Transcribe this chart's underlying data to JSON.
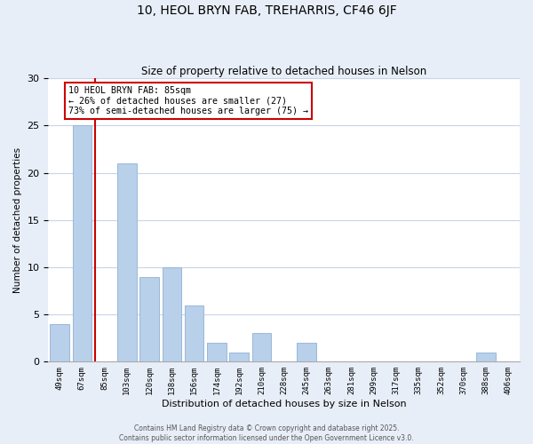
{
  "title": "10, HEOL BRYN FAB, TREHARRIS, CF46 6JF",
  "subtitle": "Size of property relative to detached houses in Nelson",
  "xlabel": "Distribution of detached houses by size in Nelson",
  "ylabel": "Number of detached properties",
  "bar_labels": [
    "49sqm",
    "67sqm",
    "85sqm",
    "103sqm",
    "120sqm",
    "138sqm",
    "156sqm",
    "174sqm",
    "192sqm",
    "210sqm",
    "228sqm",
    "245sqm",
    "263sqm",
    "281sqm",
    "299sqm",
    "317sqm",
    "335sqm",
    "352sqm",
    "370sqm",
    "388sqm",
    "406sqm"
  ],
  "bar_values": [
    4,
    25,
    0,
    21,
    9,
    10,
    6,
    2,
    1,
    3,
    0,
    2,
    0,
    0,
    0,
    0,
    0,
    0,
    0,
    1,
    0
  ],
  "bar_color": "#b8d0ea",
  "bar_edge_color": "#9ab8d8",
  "highlight_line_color": "#cc0000",
  "annotation_text": "10 HEOL BRYN FAB: 85sqm\n← 26% of detached houses are smaller (27)\n73% of semi-detached houses are larger (75) →",
  "annotation_box_color": "#ffffff",
  "annotation_box_edge_color": "#cc0000",
  "ylim": [
    0,
    30
  ],
  "yticks": [
    0,
    5,
    10,
    15,
    20,
    25,
    30
  ],
  "footer_line1": "Contains HM Land Registry data © Crown copyright and database right 2025.",
  "footer_line2": "Contains public sector information licensed under the Open Government Licence v3.0.",
  "bg_color": "#e8eef8",
  "plot_bg_color": "#ffffff",
  "grid_color": "#c8d4e8"
}
